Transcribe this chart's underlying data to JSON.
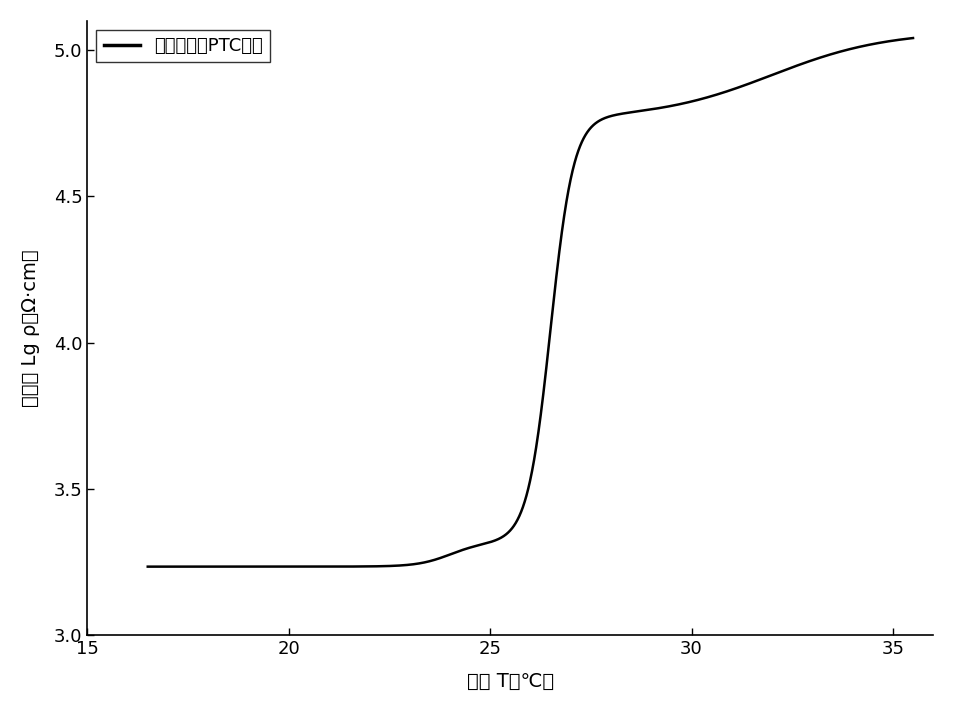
{
  "xlabel": "温度 T（℃）",
  "ylabel": "电阻率 Lg ρ（Ω·cm）",
  "ylabel_display": "电阻率 Lg ρ（Ω·cm）",
  "legend_label": "正十八烷基PTC材料",
  "xlim": [
    15,
    36
  ],
  "ylim": [
    3.0,
    5.1
  ],
  "xticks": [
    15,
    20,
    25,
    30,
    35
  ],
  "yticks": [
    3.0,
    3.5,
    4.0,
    4.5,
    5.0
  ],
  "line_color": "#000000",
  "line_width": 1.8,
  "background_color": "#ffffff",
  "figsize": [
    9.54,
    7.12
  ],
  "dpi": 100
}
